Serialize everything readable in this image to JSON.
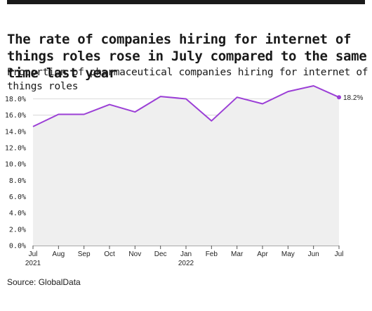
{
  "header": {
    "title": "The rate of companies hiring for internet of things roles rose in July compared to the same time last year",
    "subtitle": "Proportion of pharmaceutical companies hiring for internet of things roles"
  },
  "footer": {
    "source": "Source: GlobalData"
  },
  "colors": {
    "line": "#9b3fd6",
    "area": "#efefef",
    "grid": "#cfcfcf"
  },
  "chart_data": {
    "type": "area",
    "title": "The rate of companies hiring for internet of things roles rose in July compared to the same time last year",
    "subtitle": "Proportion of pharmaceutical companies hiring for internet of things roles",
    "categories": [
      "Jul\n2021",
      "Aug",
      "Sep",
      "Oct",
      "Nov",
      "Dec",
      "Jan\n2022",
      "Feb",
      "Mar",
      "Apr",
      "May",
      "Jun",
      "Jul"
    ],
    "series": [
      {
        "values": [
          14.6,
          16.1,
          16.1,
          17.3,
          16.4,
          18.3,
          18.0,
          15.3,
          18.2,
          17.4,
          18.9,
          19.6,
          18.2
        ]
      }
    ],
    "ylim": [
      0,
      19.6
    ],
    "yticks": [
      "0.0%",
      "2.0%",
      "4.0%",
      "6.0%",
      "8.0%",
      "10.0%",
      "12.0%",
      "14.0%",
      "16.0%",
      "18.0%"
    ],
    "end_label": "18.2%",
    "grid": true,
    "legend": "none"
  }
}
